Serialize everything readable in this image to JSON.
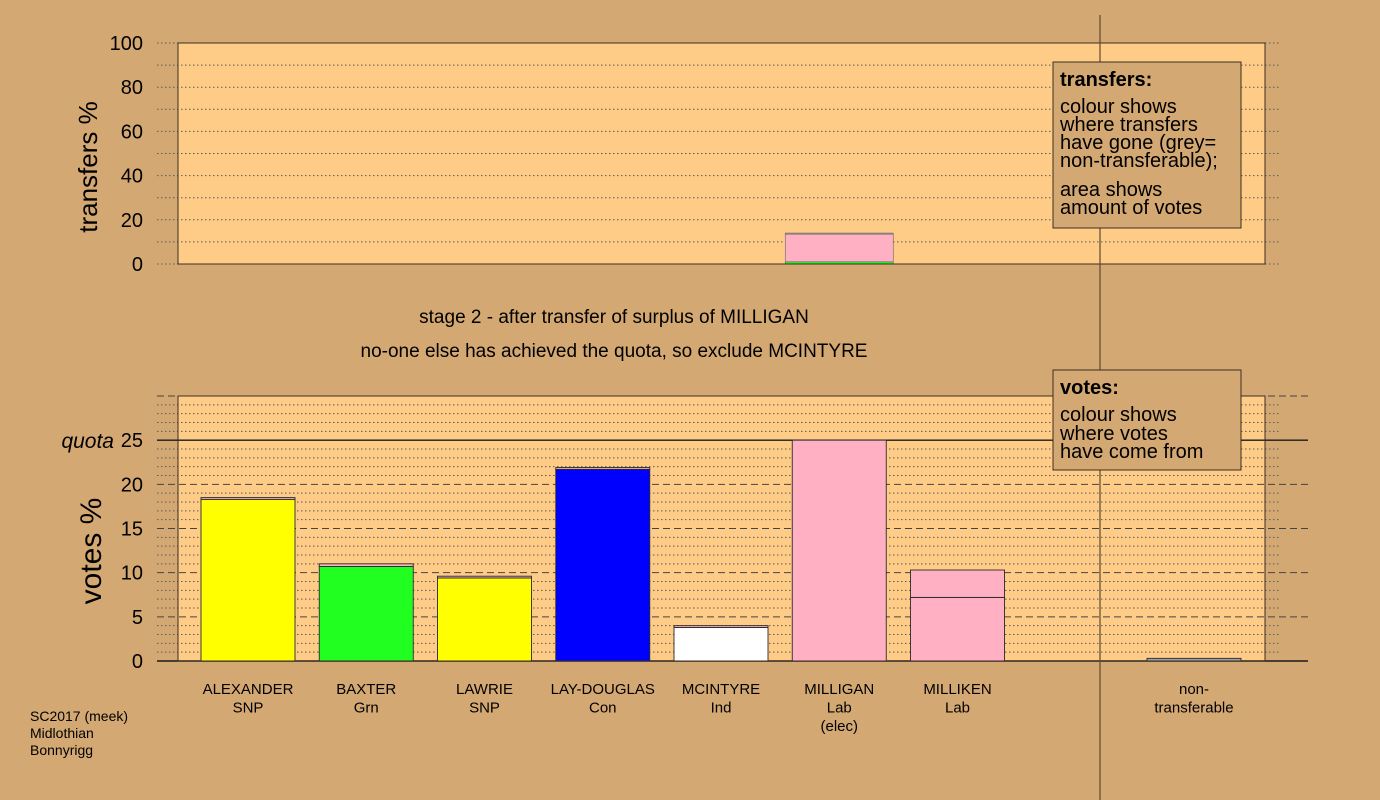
{
  "chart_data": [
    {
      "type": "bar",
      "ylabel": "transfers %",
      "ylim": [
        0,
        100
      ],
      "yticks": [
        0,
        20,
        40,
        60,
        80,
        100
      ],
      "grid": true,
      "stacks": [
        [],
        [],
        [],
        [],
        [],
        [
          {
            "color": "#20FF20",
            "value": 1.0
          },
          {
            "color": "#FFB0C3",
            "value": 12.5
          },
          {
            "color": "#A0A0A0",
            "value": 0.5
          }
        ],
        [],
        []
      ],
      "legend": {
        "title": "transfers:",
        "lines": [
          "colour shows",
          "where transfers",
          "have gone (grey=",
          "non-transferable);"
        ],
        "lines2": [
          "area shows",
          "amount of votes"
        ]
      }
    },
    {
      "type": "bar",
      "ylabel": "votes %",
      "ylim": [
        0,
        30
      ],
      "yticks": [
        0,
        5,
        10,
        15,
        20,
        25
      ],
      "grid": true,
      "quota": 25,
      "quota_label": "quota",
      "categories": [
        {
          "label_lines": [
            "ALEXANDER",
            "SNP"
          ],
          "segments": [
            {
              "color": "#FFFF00",
              "value": 18.3
            },
            {
              "color": "#FFB0C3",
              "value": 0.2
            }
          ]
        },
        {
          "label_lines": [
            "BAXTER",
            "Grn"
          ],
          "segments": [
            {
              "color": "#20FF20",
              "value": 10.7
            },
            {
              "color": "#FFB0C3",
              "value": 0.3
            }
          ]
        },
        {
          "label_lines": [
            "LAWRIE",
            "SNP"
          ],
          "segments": [
            {
              "color": "#FFFF00",
              "value": 9.4
            },
            {
              "color": "#FFB0C3",
              "value": 0.2
            }
          ]
        },
        {
          "label_lines": [
            "LAY-DOUGLAS",
            "Con"
          ],
          "segments": [
            {
              "color": "#0000FF",
              "value": 21.7
            },
            {
              "color": "#FFB0C3",
              "value": 0.2
            }
          ]
        },
        {
          "label_lines": [
            "MCINTYRE",
            "Ind"
          ],
          "segments": [
            {
              "color": "#FFFFFF",
              "value": 3.8
            },
            {
              "color": "#FFB0C3",
              "value": 0.2
            }
          ]
        },
        {
          "label_lines": [
            "MILLIGAN",
            "Lab",
            "(elec)"
          ],
          "segments": [
            {
              "color": "#FFB0C3",
              "value": 25.0
            }
          ]
        },
        {
          "label_lines": [
            "MILLIKEN",
            "Lab"
          ],
          "segments": [
            {
              "color": "#FFB0C3",
              "value": 7.2
            },
            {
              "color": "#FFB0C3",
              "value": 3.1
            }
          ]
        },
        {
          "label_lines": [
            "non-",
            "transferable"
          ],
          "nontransferable": true,
          "segments": [
            {
              "color": "#A0A0A0",
              "value": 0.3
            }
          ]
        }
      ],
      "legend": {
        "title": "votes:",
        "lines": [
          "colour shows",
          "where votes",
          "have come from"
        ]
      }
    }
  ],
  "stage": {
    "title": "stage 2 - after transfer of surplus of MILLIGAN",
    "note": "no-one else has achieved the quota, so exclude MCINTYRE"
  },
  "footer": {
    "lines": [
      "SC2017 (meek)",
      "Midlothian",
      "Bonnyrigg"
    ]
  },
  "colors": {
    "background": "#D4A873",
    "plot_area": "#FFCC88",
    "frame": "#3A2E20",
    "divider": "#5B4A33",
    "legend_box": "#D4A873"
  }
}
